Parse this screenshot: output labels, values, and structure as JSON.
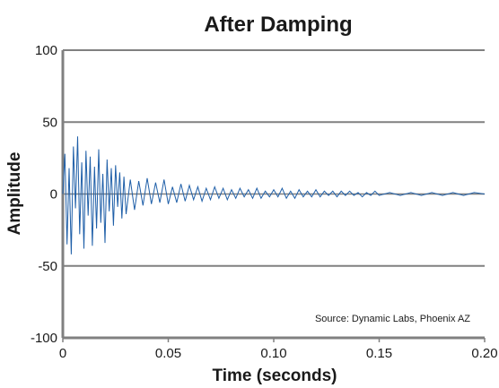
{
  "chart_data": {
    "type": "line",
    "title": "After Damping",
    "xlabel": "Time (seconds)",
    "ylabel": "Amplitude",
    "xlim": [
      0,
      0.2
    ],
    "ylim": [
      -100,
      100
    ],
    "xticks": [
      0,
      0.05,
      0.1,
      0.15,
      0.2
    ],
    "xtick_labels": [
      "0",
      "0.05",
      "0.10",
      "0.15",
      "0.20"
    ],
    "yticks": [
      -100,
      -50,
      0,
      50,
      100
    ],
    "ytick_labels": [
      "-100",
      "-50",
      "0",
      "50",
      "100"
    ],
    "grid": "horizontal",
    "source_note": "Source: Dynamic Labs, Phoenix AZ",
    "line_color": "#1f5fa8",
    "axis_color": "#808080",
    "series": [
      {
        "x": [
          0.0,
          0.001,
          0.002,
          0.003,
          0.004,
          0.005,
          0.006,
          0.007,
          0.008,
          0.009,
          0.01,
          0.011,
          0.012,
          0.013,
          0.014,
          0.015,
          0.016,
          0.017,
          0.018,
          0.019,
          0.02,
          0.021,
          0.022,
          0.023,
          0.024,
          0.025,
          0.026,
          0.027,
          0.028,
          0.029,
          0.03,
          0.032,
          0.034,
          0.036,
          0.038,
          0.04,
          0.042,
          0.044,
          0.046,
          0.048,
          0.05,
          0.052,
          0.054,
          0.056,
          0.058,
          0.06,
          0.062,
          0.064,
          0.066,
          0.068,
          0.07,
          0.072,
          0.074,
          0.076,
          0.078,
          0.08,
          0.082,
          0.084,
          0.086,
          0.088,
          0.09,
          0.092,
          0.094,
          0.096,
          0.098,
          0.1,
          0.102,
          0.104,
          0.106,
          0.108,
          0.11,
          0.112,
          0.114,
          0.116,
          0.118,
          0.12,
          0.122,
          0.124,
          0.126,
          0.128,
          0.13,
          0.132,
          0.134,
          0.136,
          0.138,
          0.14,
          0.142,
          0.144,
          0.146,
          0.148,
          0.15,
          0.155,
          0.16,
          0.165,
          0.17,
          0.175,
          0.18,
          0.185,
          0.19,
          0.195,
          0.2
        ],
        "y": [
          0,
          28,
          -35,
          18,
          -42,
          33,
          -10,
          40,
          -28,
          22,
          -38,
          30,
          -15,
          26,
          -36,
          19,
          -24,
          31,
          -20,
          14,
          -34,
          24,
          -12,
          18,
          -22,
          20,
          -9,
          15,
          -17,
          12,
          -14,
          10,
          -11,
          9,
          -8,
          11,
          -7,
          8,
          -6,
          10,
          -7,
          5,
          -6,
          7,
          -5,
          6,
          -4,
          5,
          -5,
          4,
          -4,
          5,
          -3,
          4,
          -4,
          3,
          -3,
          4,
          -2,
          3,
          -3,
          4,
          -3,
          2,
          -2,
          3,
          -2,
          4,
          -3,
          2,
          -3,
          3,
          -2,
          2,
          -2,
          3,
          -2,
          2,
          -1,
          2,
          -2,
          2,
          -1,
          2,
          -1,
          1,
          -2,
          1,
          -1,
          2,
          -1,
          1,
          -1,
          1,
          -1,
          1,
          -1,
          1,
          -1,
          1,
          0
        ]
      }
    ]
  }
}
